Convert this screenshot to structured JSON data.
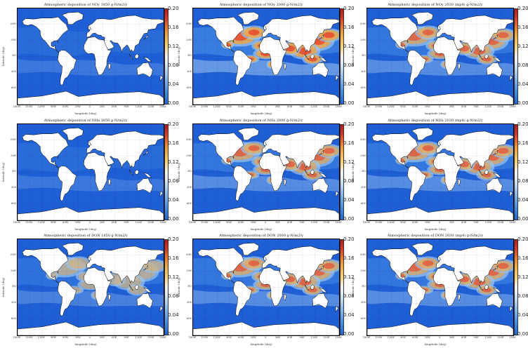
{
  "panels": [
    {
      "title": "Atmospheric deposition of NOy 1850 g-N/m2/y",
      "level": 0
    },
    {
      "title": "Atmospheric deposition of NOy 2000 g-N/m2/y",
      "level": 3
    },
    {
      "title": "Atmospheric deposition of NOy 2030 (mp4) g-N/m2/y",
      "level": 2
    },
    {
      "title": "Atmospheric deposition of NHx 1850 g-N/m2/y",
      "level": 0
    },
    {
      "title": "Atmospheric deposition of NHx 2000 g-N/m2/y",
      "level": 2
    },
    {
      "title": "Atmospheric deposition of NHx 2030 (mp4) g-N/m2/y",
      "level": 2
    },
    {
      "title": "Atmospheric deposition of DON 1850 g-N/m2/y",
      "level": 1
    },
    {
      "title": "Atmospheric deposition of DON 2000 g-N/m2/y",
      "level": 2
    },
    {
      "title": "Atmospheric deposition of DON 2030 (mp4) g-N/m2/y",
      "level": 2
    }
  ],
  "axes": {
    "xlabel": "longitude (deg)",
    "ylabel": "latitude (deg)",
    "xticks": [
      "180W",
      "150W",
      "120W",
      "90W",
      "60W",
      "30W",
      "0",
      "30E",
      "60E",
      "90E",
      "120E",
      "150E",
      "180E"
    ],
    "yticks": [
      "60N",
      "30N",
      "EQ",
      "30S",
      "60S"
    ]
  },
  "colorbar": {
    "ticks": [
      "0.20",
      "0.16",
      "0.12",
      "0.08",
      "0.04",
      "0.00"
    ]
  },
  "colors": {
    "ocean_deep": "#1f5fd6",
    "ocean_mid": "#4a8fe6",
    "ocean_light": "#9cc6f0",
    "land": "#ffffff",
    "high": "#e8452c",
    "peak": "#f5a63c"
  }
}
